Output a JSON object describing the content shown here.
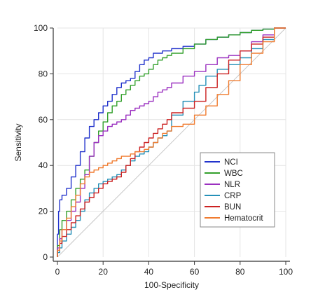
{
  "chart_data": {
    "type": "line",
    "title": "",
    "xlabel": "100-Specificity",
    "ylabel": "Sensitivity",
    "xlim": [
      0,
      100
    ],
    "ylim": [
      0,
      100
    ],
    "xticks": [
      0,
      20,
      40,
      60,
      80,
      100
    ],
    "yticks": [
      0,
      20,
      40,
      60,
      80,
      100
    ],
    "grid": true,
    "legend_position": "bottom-right",
    "reference_line": {
      "type": "diagonal",
      "color": "#c8c8c8"
    },
    "series": [
      {
        "name": "NCI",
        "color": "#2233cc",
        "points": [
          [
            0,
            0
          ],
          [
            0.5,
            10
          ],
          [
            1,
            20
          ],
          [
            2,
            25
          ],
          [
            4,
            27
          ],
          [
            6,
            30
          ],
          [
            8,
            35
          ],
          [
            10,
            40
          ],
          [
            12,
            46
          ],
          [
            14,
            52
          ],
          [
            16,
            57
          ],
          [
            18,
            60
          ],
          [
            20,
            63
          ],
          [
            22,
            66
          ],
          [
            24,
            68
          ],
          [
            26,
            71
          ],
          [
            28,
            74
          ],
          [
            30,
            76
          ],
          [
            32,
            77
          ],
          [
            34,
            78
          ],
          [
            36,
            81
          ],
          [
            38,
            84
          ],
          [
            40,
            86
          ],
          [
            42,
            87
          ],
          [
            44,
            89
          ],
          [
            46,
            89
          ],
          [
            48,
            90
          ],
          [
            50,
            90
          ],
          [
            55,
            91
          ],
          [
            60,
            92
          ],
          [
            65,
            93
          ],
          [
            70,
            95
          ],
          [
            75,
            96
          ],
          [
            80,
            97
          ],
          [
            85,
            98
          ],
          [
            90,
            99
          ],
          [
            95,
            99.5
          ],
          [
            100,
            100
          ]
        ]
      },
      {
        "name": "WBC",
        "color": "#33a02c",
        "points": [
          [
            0,
            0
          ],
          [
            1,
            5
          ],
          [
            2,
            12
          ],
          [
            4,
            16
          ],
          [
            6,
            20
          ],
          [
            8,
            25
          ],
          [
            10,
            30
          ],
          [
            12,
            34
          ],
          [
            14,
            38
          ],
          [
            16,
            44
          ],
          [
            18,
            50
          ],
          [
            20,
            55
          ],
          [
            22,
            59
          ],
          [
            24,
            63
          ],
          [
            26,
            66
          ],
          [
            28,
            68
          ],
          [
            30,
            71
          ],
          [
            32,
            73
          ],
          [
            34,
            75
          ],
          [
            36,
            77
          ],
          [
            38,
            79
          ],
          [
            40,
            80
          ],
          [
            42,
            82
          ],
          [
            44,
            84
          ],
          [
            46,
            86
          ],
          [
            48,
            87
          ],
          [
            50,
            88
          ],
          [
            55,
            89
          ],
          [
            60,
            91
          ],
          [
            65,
            93
          ],
          [
            70,
            95
          ],
          [
            75,
            96
          ],
          [
            80,
            97
          ],
          [
            85,
            98
          ],
          [
            90,
            99
          ],
          [
            95,
            99.5
          ],
          [
            100,
            100
          ]
        ]
      },
      {
        "name": "NLR",
        "color": "#9b30c0",
        "points": [
          [
            0,
            0
          ],
          [
            1,
            4
          ],
          [
            2,
            8
          ],
          [
            4,
            12
          ],
          [
            6,
            16
          ],
          [
            8,
            20
          ],
          [
            10,
            24
          ],
          [
            12,
            30
          ],
          [
            14,
            36
          ],
          [
            16,
            44
          ],
          [
            18,
            50
          ],
          [
            20,
            53
          ],
          [
            22,
            55
          ],
          [
            24,
            57
          ],
          [
            26,
            58
          ],
          [
            28,
            59
          ],
          [
            30,
            60
          ],
          [
            32,
            62
          ],
          [
            34,
            64
          ],
          [
            36,
            65
          ],
          [
            38,
            66
          ],
          [
            40,
            67
          ],
          [
            42,
            68
          ],
          [
            44,
            70
          ],
          [
            46,
            72
          ],
          [
            48,
            73
          ],
          [
            50,
            74
          ],
          [
            55,
            76
          ],
          [
            60,
            79
          ],
          [
            65,
            81
          ],
          [
            70,
            84
          ],
          [
            75,
            87
          ],
          [
            80,
            88
          ],
          [
            85,
            90
          ],
          [
            90,
            94
          ],
          [
            95,
            97
          ],
          [
            100,
            100
          ]
        ]
      },
      {
        "name": "CRP",
        "color": "#2590b8",
        "points": [
          [
            0,
            0
          ],
          [
            1,
            2
          ],
          [
            2,
            4
          ],
          [
            4,
            7
          ],
          [
            6,
            10
          ],
          [
            8,
            13
          ],
          [
            10,
            16
          ],
          [
            12,
            20
          ],
          [
            14,
            25
          ],
          [
            16,
            28
          ],
          [
            18,
            30
          ],
          [
            20,
            32
          ],
          [
            22,
            33
          ],
          [
            24,
            34
          ],
          [
            26,
            35
          ],
          [
            28,
            36
          ],
          [
            30,
            38
          ],
          [
            32,
            40
          ],
          [
            34,
            42
          ],
          [
            36,
            44
          ],
          [
            38,
            45
          ],
          [
            40,
            46
          ],
          [
            42,
            48
          ],
          [
            44,
            50
          ],
          [
            46,
            52
          ],
          [
            48,
            53
          ],
          [
            50,
            55
          ],
          [
            55,
            62
          ],
          [
            60,
            68
          ],
          [
            62,
            72
          ],
          [
            65,
            75
          ],
          [
            70,
            79
          ],
          [
            75,
            82
          ],
          [
            80,
            84
          ],
          [
            85,
            87
          ],
          [
            90,
            91
          ],
          [
            95,
            95
          ],
          [
            100,
            100
          ]
        ]
      },
      {
        "name": "BUN",
        "color": "#cc2222",
        "points": [
          [
            0,
            0
          ],
          [
            1,
            3
          ],
          [
            2,
            6
          ],
          [
            4,
            9
          ],
          [
            6,
            12
          ],
          [
            8,
            15
          ],
          [
            10,
            18
          ],
          [
            12,
            21
          ],
          [
            14,
            24
          ],
          [
            16,
            26
          ],
          [
            18,
            28
          ],
          [
            20,
            30
          ],
          [
            22,
            32
          ],
          [
            24,
            33
          ],
          [
            26,
            34
          ],
          [
            28,
            35
          ],
          [
            30,
            37
          ],
          [
            32,
            40
          ],
          [
            34,
            43
          ],
          [
            36,
            46
          ],
          [
            38,
            48
          ],
          [
            40,
            50
          ],
          [
            42,
            52
          ],
          [
            44,
            54
          ],
          [
            46,
            56
          ],
          [
            48,
            58
          ],
          [
            50,
            60
          ],
          [
            55,
            63
          ],
          [
            60,
            65
          ],
          [
            65,
            68
          ],
          [
            70,
            74
          ],
          [
            75,
            80
          ],
          [
            80,
            86
          ],
          [
            85,
            90
          ],
          [
            90,
            93
          ],
          [
            95,
            96
          ],
          [
            100,
            100
          ]
        ]
      },
      {
        "name": "Hematocrit",
        "color": "#f07c30",
        "points": [
          [
            0,
            0
          ],
          [
            1,
            3
          ],
          [
            2,
            7
          ],
          [
            4,
            12
          ],
          [
            6,
            17
          ],
          [
            8,
            22
          ],
          [
            10,
            27
          ],
          [
            12,
            32
          ],
          [
            14,
            35
          ],
          [
            16,
            37
          ],
          [
            18,
            38
          ],
          [
            20,
            39
          ],
          [
            22,
            40
          ],
          [
            24,
            41
          ],
          [
            26,
            42
          ],
          [
            28,
            43
          ],
          [
            30,
            44
          ],
          [
            32,
            44
          ],
          [
            34,
            45
          ],
          [
            36,
            46
          ],
          [
            38,
            46
          ],
          [
            40,
            47
          ],
          [
            42,
            48
          ],
          [
            44,
            50
          ],
          [
            46,
            52
          ],
          [
            48,
            54
          ],
          [
            50,
            55
          ],
          [
            55,
            57
          ],
          [
            60,
            58
          ],
          [
            65,
            62
          ],
          [
            70,
            66
          ],
          [
            75,
            71
          ],
          [
            80,
            77
          ],
          [
            85,
            84
          ],
          [
            90,
            89
          ],
          [
            95,
            94
          ],
          [
            100,
            100
          ]
        ]
      }
    ]
  }
}
